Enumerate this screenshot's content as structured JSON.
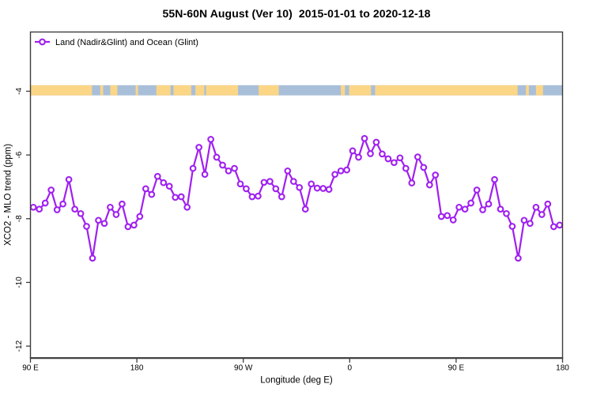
{
  "title": "55N-60N August (Ver 10)  2015-01-01 to 2020-12-18",
  "chart_data": {
    "type": "line",
    "title": "55N-60N August (Ver 10)  2015-01-01 to 2020-12-18",
    "xlabel": "Longitude (deg E)",
    "ylabel": "XCO2 - MLO trend (ppm)",
    "xlim": [
      90,
      540
    ],
    "ylim": [
      -12.37,
      -2.14
    ],
    "grid": false,
    "legend_position": "top-left-inside",
    "x_ticks": [
      {
        "pos": 90,
        "label": "90 E"
      },
      {
        "pos": 180,
        "label": "180"
      },
      {
        "pos": 270,
        "label": "90 W"
      },
      {
        "pos": 360,
        "label": "0"
      },
      {
        "pos": 450,
        "label": "90 E"
      },
      {
        "pos": 540,
        "label": "180"
      }
    ],
    "y_ticks": [
      {
        "pos": -4,
        "label": "-4"
      },
      {
        "pos": -6,
        "label": "-6"
      },
      {
        "pos": -8,
        "label": "-8"
      },
      {
        "pos": -10,
        "label": "-10"
      },
      {
        "pos": -12,
        "label": "-12"
      }
    ],
    "axis_color": "#3c3c3c",
    "series": [
      {
        "name": "Land (Nadir&Glint) and Ocean (Glint)",
        "color": "#A020F0",
        "marker": "open-circle",
        "x": [
          92.5,
          97.5,
          102.5,
          107.5,
          112.5,
          117.5,
          122.5,
          127.5,
          132.5,
          137.5,
          142.5,
          147.5,
          152.5,
          157.5,
          162.5,
          167.5,
          172.5,
          177.5,
          182.5,
          187.5,
          192.5,
          197.5,
          202.5,
          207.5,
          212.5,
          217.5,
          222.5,
          227.5,
          232.5,
          237.5,
          242.5,
          247.5,
          252.5,
          257.5,
          262.5,
          267.5,
          272.5,
          277.5,
          282.5,
          287.5,
          292.5,
          297.5,
          302.5,
          307.5,
          312.5,
          317.5,
          322.5,
          327.5,
          332.5,
          337.5,
          342.5,
          347.5,
          352.5,
          357.5,
          362.5,
          367.5,
          372.5,
          377.5,
          382.5,
          387.5,
          392.5,
          397.5,
          402.5,
          407.5,
          412.5,
          417.5,
          422.5,
          427.5,
          432.5,
          437.5,
          442.5,
          447.5,
          452.5,
          457.5,
          462.5,
          467.5,
          472.5,
          477.5,
          482.5,
          487.5,
          492.5,
          497.5,
          502.5,
          507.5,
          512.5,
          517.5,
          522.5,
          527.5,
          532.5,
          537.5
        ],
        "y": [
          -7.64,
          -7.7,
          -7.51,
          -7.1,
          -7.72,
          -7.54,
          -6.77,
          -7.7,
          -7.84,
          -8.24,
          -9.24,
          -8.05,
          -8.15,
          -7.64,
          -7.87,
          -7.54,
          -8.25,
          -8.2,
          -7.93,
          -7.06,
          -7.24,
          -6.67,
          -6.87,
          -6.98,
          -7.33,
          -7.31,
          -7.64,
          -6.42,
          -5.76,
          -6.61,
          -5.51,
          -6.07,
          -6.32,
          -6.5,
          -6.42,
          -6.91,
          -7.06,
          -7.31,
          -7.29,
          -6.86,
          -6.83,
          -7.06,
          -7.31,
          -6.5,
          -6.83,
          -7.02,
          -7.7,
          -6.91,
          -7.04,
          -7.05,
          -7.08,
          -6.61,
          -6.5,
          -6.47,
          -5.87,
          -6.07,
          -5.48,
          -5.96,
          -5.6,
          -5.97,
          -6.12,
          -6.24,
          -6.09,
          -6.42,
          -6.88,
          -6.06,
          -6.39,
          -6.94,
          -6.63,
          -7.93,
          -7.9,
          -8.04,
          -7.64,
          -7.7,
          -7.51,
          -7.1,
          -7.72,
          -7.54,
          -6.77,
          -7.7,
          -7.84,
          -8.24,
          -9.24,
          -8.05,
          -8.15,
          -7.64,
          -7.87,
          -7.54,
          -8.25,
          -8.2
        ]
      }
    ],
    "map_strip": {
      "description": "world coastline band 55N-60N drawn across plot near y=-4",
      "y_center": -3.97,
      "half_height_ppm": 0.16,
      "ocean_color": "#A9BFD9",
      "land_color": "#FBD687",
      "land_segments": [
        [
          90,
          142
        ],
        [
          149,
          151.5
        ],
        [
          157.5,
          163.5
        ],
        [
          179,
          181
        ],
        [
          196.5,
          208.5
        ],
        [
          211,
          226
        ],
        [
          229.5,
          237
        ],
        [
          238.5,
          265.5
        ],
        [
          283,
          300
        ],
        [
          352.5,
          356
        ],
        [
          359.5,
          378
        ],
        [
          381.5,
          502
        ],
        [
          509,
          511.5
        ],
        [
          517.5,
          523.5
        ]
      ]
    }
  },
  "legend": {
    "label": "Land (Nadir&Glint) and Ocean (Glint)",
    "marker_color": "#A020F0"
  }
}
